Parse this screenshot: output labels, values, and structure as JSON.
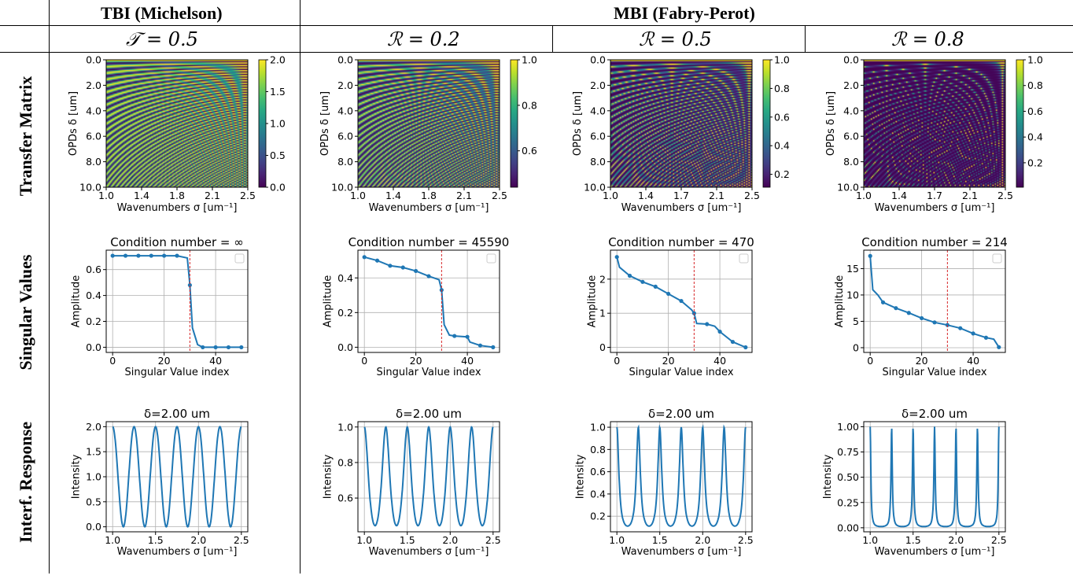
{
  "headers": {
    "tbi": "TBI (Michelson)",
    "mbi": "MBI (Fabry-Perot)"
  },
  "params": [
    "𝒯 = 0.5",
    "ℛ = 0.2",
    "ℛ = 0.5",
    "ℛ = 0.8"
  ],
  "row_labels": [
    "Transfer Matrix",
    "Singular Values",
    "Interf. Response"
  ],
  "chart_data": [
    {
      "type": "heatmap",
      "row": 0,
      "col": 0,
      "R": 0.5,
      "mode": "michelson",
      "xlabel": "Wavenumbers σ [um⁻¹]",
      "ylabel": "OPDs δ [um]",
      "xticks": [
        "1.0",
        "1.4",
        "1.8",
        "2.1",
        "2.5"
      ],
      "yticks": [
        "0.0",
        "2.0",
        "4.0",
        "6.0",
        "8.0",
        "10.0"
      ],
      "colorbar": {
        "min": 0.0,
        "max": 2.0,
        "ticks": [
          0.0,
          0.5,
          1.0,
          1.5,
          2.0
        ],
        "labels": [
          "0.0",
          "0.5",
          "1.0",
          "1.5",
          "2.0"
        ]
      }
    },
    {
      "type": "heatmap",
      "row": 0,
      "col": 1,
      "R": 0.2,
      "mode": "fabry",
      "xlabel": "Wavenumbers σ [um⁻¹]",
      "ylabel": "OPDs δ [um]",
      "xticks": [
        "1.0",
        "1.4",
        "1.8",
        "2.1",
        "2.5"
      ],
      "yticks": [
        "0.0",
        "2.0",
        "4.0",
        "6.0",
        "8.0",
        "10.0"
      ],
      "colorbar": {
        "min": 0.44,
        "max": 1.0,
        "ticks": [
          0.6,
          0.8,
          1.0
        ],
        "labels": [
          "0.6",
          "0.8",
          "1.0"
        ]
      }
    },
    {
      "type": "heatmap",
      "row": 0,
      "col": 2,
      "R": 0.5,
      "mode": "fabry",
      "xlabel": "Wavenumbers σ [um⁻¹]",
      "ylabel": "OPDs δ [um]",
      "xticks": [
        "1.0",
        "1.4",
        "1.7",
        "2.1",
        "2.5"
      ],
      "yticks": [
        "0.0",
        "2.0",
        "4.0",
        "6.0",
        "8.0",
        "10.0"
      ],
      "colorbar": {
        "min": 0.11,
        "max": 1.0,
        "ticks": [
          0.2,
          0.4,
          0.6,
          0.8,
          1.0
        ],
        "labels": [
          "0.2",
          "0.4",
          "0.6",
          "0.8",
          "1.0"
        ]
      }
    },
    {
      "type": "heatmap",
      "row": 0,
      "col": 3,
      "R": 0.8,
      "mode": "fabry",
      "xlabel": "Wavenumbers σ [um⁻¹]",
      "ylabel": "OPDs δ [um]",
      "xticks": [
        "1.0",
        "1.4",
        "1.7",
        "2.1",
        "2.5"
      ],
      "yticks": [
        "0.0",
        "2.0",
        "4.0",
        "6.0",
        "8.0",
        "10.0"
      ],
      "colorbar": {
        "min": 0.01,
        "max": 1.0,
        "ticks": [
          0.2,
          0.4,
          0.6,
          0.8,
          1.0
        ],
        "labels": [
          "0.2",
          "0.4",
          "0.6",
          "0.8",
          "1.0"
        ]
      }
    },
    {
      "type": "line",
      "row": 1,
      "col": 0,
      "title": "Condition number = ∞",
      "xlabel": "Singular Value index",
      "ylabel": "Amplitude",
      "xlim": [
        -2.5,
        52.5
      ],
      "ylim": [
        -0.04,
        0.75
      ],
      "xticks": [
        0,
        20,
        40
      ],
      "yticks": [
        0.0,
        0.2,
        0.4,
        0.6
      ],
      "ytick_labels": [
        "0.0",
        "0.2",
        "0.4",
        "0.6"
      ],
      "vline": 30,
      "x": [
        0,
        5,
        10,
        15,
        20,
        25,
        29,
        30,
        31,
        33,
        35,
        40,
        45,
        50
      ],
      "y": [
        0.707,
        0.707,
        0.707,
        0.707,
        0.707,
        0.707,
        0.69,
        0.48,
        0.15,
        0.02,
        0.0,
        0.0,
        0.0,
        0.0
      ],
      "markers": [
        0,
        5,
        10,
        15,
        20,
        25,
        30,
        35,
        40,
        45,
        50
      ]
    },
    {
      "type": "line",
      "row": 1,
      "col": 1,
      "title": "Condition number = 45590",
      "xlabel": "Singular Value index",
      "ylabel": "Amplitude",
      "xlim": [
        -2.5,
        52.5
      ],
      "ylim": [
        -0.03,
        0.56
      ],
      "xticks": [
        0,
        20,
        40
      ],
      "yticks": [
        0.0,
        0.2,
        0.4
      ],
      "ytick_labels": [
        "0.0",
        "0.2",
        "0.4"
      ],
      "vline": 30,
      "x": [
        0,
        5,
        10,
        15,
        20,
        25,
        29,
        30,
        31,
        33,
        35,
        40,
        41,
        45,
        50
      ],
      "y": [
        0.52,
        0.5,
        0.47,
        0.46,
        0.44,
        0.41,
        0.39,
        0.33,
        0.13,
        0.07,
        0.065,
        0.06,
        0.03,
        0.01,
        0.0
      ],
      "markers": [
        0,
        5,
        10,
        15,
        20,
        25,
        30,
        35,
        40,
        45,
        50
      ]
    },
    {
      "type": "line",
      "row": 1,
      "col": 2,
      "title": "Condition number = 470",
      "xlabel": "Singular Value index",
      "ylabel": "Amplitude",
      "xlim": [
        -2.5,
        52.5
      ],
      "ylim": [
        -0.15,
        2.85
      ],
      "xticks": [
        0,
        20,
        40
      ],
      "yticks": [
        0,
        1,
        2
      ],
      "ytick_labels": [
        "0",
        "1",
        "2"
      ],
      "vline": 30,
      "x": [
        0,
        1,
        5,
        10,
        15,
        20,
        25,
        29,
        30,
        31,
        35,
        38,
        40,
        45,
        50
      ],
      "y": [
        2.65,
        2.35,
        2.1,
        1.92,
        1.78,
        1.57,
        1.36,
        1.1,
        1.0,
        0.7,
        0.68,
        0.62,
        0.46,
        0.16,
        0.0
      ],
      "markers": [
        0,
        5,
        10,
        15,
        20,
        25,
        30,
        35,
        40,
        45,
        50
      ]
    },
    {
      "type": "line",
      "row": 1,
      "col": 3,
      "title": "Condition number = 214",
      "xlabel": "Singular Value index",
      "ylabel": "Amplitude",
      "xlim": [
        -2.5,
        52.5
      ],
      "ylim": [
        -0.9,
        18.5
      ],
      "xticks": [
        0,
        20,
        40
      ],
      "yticks": [
        0,
        5,
        10,
        15
      ],
      "ytick_labels": [
        "0",
        "5",
        "10",
        "15"
      ],
      "vline": 30,
      "x": [
        0,
        1,
        3,
        5,
        10,
        15,
        20,
        25,
        30,
        35,
        40,
        45,
        48,
        50
      ],
      "y": [
        17.4,
        11.0,
        10.0,
        8.6,
        7.5,
        6.6,
        5.6,
        4.8,
        4.3,
        3.7,
        2.7,
        1.9,
        1.6,
        0.1
      ],
      "markers": [
        0,
        5,
        10,
        15,
        20,
        25,
        30,
        35,
        40,
        45,
        50
      ]
    },
    {
      "type": "line",
      "row": 2,
      "col": 0,
      "R": 0.5,
      "mode": "michelson",
      "delta": 2.0,
      "title": "δ=2.00 um",
      "xlabel": "Wavenumbers σ [um⁻¹]",
      "ylabel": "Intensity",
      "xlim": [
        0.925,
        2.575
      ],
      "ylim": [
        -0.1,
        2.1
      ],
      "xticks": [
        1.0,
        1.5,
        2.0,
        2.5
      ],
      "xtick_labels": [
        "1.0",
        "1.5",
        "2.0",
        "2.5"
      ],
      "yticks": [
        0.0,
        0.5,
        1.0,
        1.5,
        2.0
      ],
      "ytick_labels": [
        "0.0",
        "0.5",
        "1.0",
        "1.5",
        "2.0"
      ]
    },
    {
      "type": "line",
      "row": 2,
      "col": 1,
      "R": 0.2,
      "mode": "fabry",
      "delta": 2.0,
      "title": "δ=2.00 um",
      "xlabel": "Wavenumbers σ [um⁻¹]",
      "ylabel": "Intensity",
      "xlim": [
        0.925,
        2.575
      ],
      "ylim": [
        0.41,
        1.03
      ],
      "xticks": [
        1.0,
        1.5,
        2.0,
        2.5
      ],
      "xtick_labels": [
        "1.0",
        "1.5",
        "2.0",
        "2.5"
      ],
      "yticks": [
        0.6,
        0.8,
        1.0
      ],
      "ytick_labels": [
        "0.6",
        "0.8",
        "1.0"
      ]
    },
    {
      "type": "line",
      "row": 2,
      "col": 2,
      "R": 0.5,
      "mode": "fabry",
      "delta": 2.0,
      "title": "δ=2.00 um",
      "xlabel": "Wavenumbers σ [um⁻¹]",
      "ylabel": "Intensity",
      "xlim": [
        0.925,
        2.575
      ],
      "ylim": [
        0.06,
        1.05
      ],
      "xticks": [
        1.0,
        1.5,
        2.0,
        2.5
      ],
      "xtick_labels": [
        "1.0",
        "1.5",
        "2.0",
        "2.5"
      ],
      "yticks": [
        0.2,
        0.4,
        0.6,
        0.8,
        1.0
      ],
      "ytick_labels": [
        "0.2",
        "0.4",
        "0.6",
        "0.8",
        "1.0"
      ]
    },
    {
      "type": "line",
      "row": 2,
      "col": 3,
      "R": 0.8,
      "mode": "fabry",
      "delta": 2.0,
      "title": "δ=2.00 um",
      "xlabel": "Wavenumbers σ [um⁻¹]",
      "ylabel": "Intensity",
      "xlim": [
        0.925,
        2.575
      ],
      "ylim": [
        -0.04,
        1.05
      ],
      "xticks": [
        1.0,
        1.5,
        2.0,
        2.5
      ],
      "xtick_labels": [
        "1.0",
        "1.5",
        "2.0",
        "2.5"
      ],
      "yticks": [
        0.0,
        0.25,
        0.5,
        0.75,
        1.0
      ],
      "ytick_labels": [
        "0.00",
        "0.25",
        "0.50",
        "0.75",
        "1.00"
      ]
    }
  ]
}
